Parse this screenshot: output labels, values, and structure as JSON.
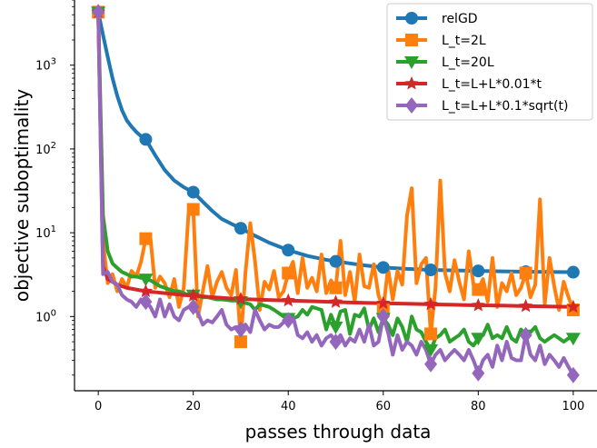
{
  "chart_data": {
    "type": "line",
    "title": "",
    "xlabel": "passes through data",
    "ylabel": "objective suboptimality",
    "xscale": "linear",
    "yscale": "log",
    "xlim": [
      -5,
      105
    ],
    "ylim": [
      0.13,
      6000
    ],
    "xticks": [
      0,
      20,
      40,
      60,
      80,
      100
    ],
    "yticks": [
      {
        "value": 1,
        "base": "10",
        "exp": "0"
      },
      {
        "value": 10,
        "base": "10",
        "exp": "1"
      },
      {
        "value": 100,
        "base": "10",
        "exp": "2"
      },
      {
        "value": 1000,
        "base": "10",
        "exp": "3"
      }
    ],
    "grid": false,
    "legend_position": "top-right",
    "series": [
      {
        "name": "relGD",
        "color": "#1f77b4",
        "marker": "circle",
        "x": [
          0,
          1,
          2,
          3,
          4,
          5,
          6,
          7,
          8,
          9,
          10,
          12,
          14,
          16,
          18,
          20,
          22,
          24,
          26,
          28,
          30,
          33,
          36,
          40,
          44,
          48,
          50,
          55,
          60,
          65,
          70,
          75,
          80,
          85,
          90,
          95,
          100
        ],
        "y": [
          4300,
          2300,
          1250,
          700,
          430,
          290,
          220,
          185,
          160,
          142,
          130,
          84,
          56,
          42,
          35,
          30.5,
          23.5,
          18.2,
          14.6,
          12.8,
          11.3,
          9.2,
          7.6,
          6.2,
          5.3,
          4.75,
          4.55,
          4.15,
          3.85,
          3.7,
          3.6,
          3.55,
          3.5,
          3.46,
          3.43,
          3.41,
          3.38
        ],
        "marker_x": [
          0,
          10,
          20,
          30,
          40,
          50,
          60,
          70,
          80,
          90,
          100
        ]
      },
      {
        "name": "L_t=2L",
        "color": "#ff7f0e",
        "marker": "square",
        "x": [
          0,
          1,
          2,
          3,
          4,
          5,
          6,
          7,
          8,
          9,
          10,
          11,
          12,
          13,
          14,
          15,
          16,
          17,
          18,
          19,
          20,
          21,
          22,
          23,
          24,
          25,
          26,
          27,
          28,
          29,
          30,
          31,
          32,
          33,
          34,
          35,
          36,
          37,
          38,
          39,
          40,
          41,
          42,
          43,
          44,
          45,
          46,
          47,
          48,
          49,
          50,
          51,
          52,
          53,
          54,
          55,
          56,
          57,
          58,
          59,
          60,
          61,
          62,
          63,
          64,
          65,
          66,
          67,
          68,
          69,
          70,
          71,
          72,
          73,
          74,
          75,
          76,
          77,
          78,
          79,
          80,
          81,
          82,
          83,
          84,
          85,
          86,
          87,
          88,
          89,
          90,
          91,
          92,
          93,
          94,
          95,
          96,
          97,
          98,
          99,
          100
        ],
        "y": [
          4300,
          8,
          2.5,
          3.2,
          2.0,
          2.8,
          2.2,
          3.5,
          3.0,
          4.5,
          8.5,
          8.5,
          2.2,
          3.0,
          2.5,
          1.7,
          2.8,
          1.3,
          2.2,
          17,
          19,
          1.0,
          2.0,
          4.0,
          1.7,
          2.6,
          3.4,
          2.2,
          1.8,
          3.6,
          0.5,
          3.4,
          13,
          4.6,
          1.2,
          2.6,
          2.1,
          3.5,
          1.7,
          2.0,
          3.3,
          4.5,
          1.9,
          5.0,
          2.2,
          2.9,
          2.0,
          5.5,
          1.9,
          2.7,
          2.2,
          8.0,
          1.8,
          3.4,
          1.5,
          5.5,
          2.3,
          2.2,
          4.2,
          1.8,
          1.2,
          3.8,
          1.6,
          3.5,
          2.4,
          16,
          34,
          2.5,
          4.2,
          5.0,
          0.62,
          2.2,
          42,
          3.3,
          2.0,
          4.7,
          2.6,
          1.6,
          6.0,
          2.4,
          2.1,
          2.8,
          1.5,
          5.0,
          1.3,
          2.5,
          2.0,
          3.3,
          1.8,
          2.2,
          3.3,
          1.7,
          2.4,
          25,
          1.4,
          5.0,
          2.3,
          1.2,
          2.6,
          1.7,
          1.2
        ],
        "marker_x": [
          0,
          10,
          20,
          30,
          40,
          50,
          60,
          70,
          80,
          90,
          100
        ]
      },
      {
        "name": "L_t=20L",
        "color": "#2ca02c",
        "marker": "triangle-down",
        "x": [
          0,
          1,
          2,
          3,
          4,
          5,
          6,
          7,
          8,
          9,
          10,
          11,
          12,
          13,
          14,
          15,
          16,
          17,
          18,
          19,
          20,
          21,
          22,
          23,
          24,
          25,
          26,
          27,
          28,
          29,
          30,
          31,
          32,
          33,
          34,
          35,
          36,
          37,
          38,
          39,
          40,
          41,
          42,
          43,
          44,
          45,
          46,
          47,
          48,
          49,
          50,
          51,
          52,
          53,
          54,
          55,
          56,
          57,
          58,
          59,
          60,
          61,
          62,
          63,
          64,
          65,
          66,
          67,
          68,
          69,
          70,
          71,
          72,
          73,
          74,
          75,
          76,
          77,
          78,
          79,
          80,
          81,
          82,
          83,
          84,
          85,
          86,
          87,
          88,
          89,
          90,
          91,
          92,
          93,
          94,
          95,
          96,
          97,
          98,
          99,
          100
        ],
        "y": [
          4300,
          16,
          6,
          4.3,
          3.8,
          3.4,
          3.2,
          3.0,
          3.0,
          2.9,
          2.8,
          2.7,
          2.5,
          2.3,
          2.2,
          2.1,
          2.0,
          2.0,
          1.9,
          1.8,
          1.8,
          1.75,
          1.7,
          1.7,
          1.65,
          1.6,
          1.6,
          1.58,
          1.55,
          1.55,
          1.5,
          1.45,
          1.4,
          1.2,
          1.4,
          1.35,
          1.3,
          1.2,
          1.1,
          1.0,
          0.95,
          0.95,
          1.0,
          1.2,
          1.05,
          1.3,
          1.25,
          1.2,
          0.7,
          1.05,
          0.75,
          1.15,
          1.2,
          0.62,
          1.05,
          1.0,
          1.25,
          0.7,
          0.95,
          0.65,
          0.95,
          0.8,
          0.6,
          0.95,
          0.75,
          0.5,
          1.0,
          0.7,
          0.65,
          0.5,
          0.4,
          0.55,
          0.6,
          0.7,
          0.5,
          0.55,
          0.6,
          0.7,
          0.5,
          0.45,
          0.55,
          0.6,
          0.8,
          0.55,
          0.6,
          0.55,
          0.75,
          0.55,
          0.5,
          0.7,
          0.6,
          0.65,
          0.75,
          0.55,
          0.5,
          0.55,
          0.6,
          0.55,
          0.5,
          0.55,
          0.55
        ],
        "marker_x": [
          0,
          10,
          20,
          30,
          40,
          50,
          60,
          70,
          80,
          90,
          100
        ]
      },
      {
        "name": "L_t=L+L*0.01*t",
        "color": "#d62728",
        "marker": "star",
        "x": [
          0,
          1,
          2,
          4,
          6,
          8,
          10,
          12,
          14,
          16,
          18,
          20,
          22,
          24,
          26,
          28,
          30,
          35,
          40,
          45,
          50,
          55,
          60,
          65,
          70,
          75,
          80,
          85,
          90,
          95,
          100
        ],
        "y": [
          4300,
          4.0,
          2.8,
          2.4,
          2.2,
          2.1,
          2.0,
          1.95,
          1.9,
          1.85,
          1.8,
          1.78,
          1.74,
          1.7,
          1.67,
          1.64,
          1.62,
          1.58,
          1.55,
          1.52,
          1.49,
          1.46,
          1.44,
          1.42,
          1.4,
          1.38,
          1.36,
          1.35,
          1.33,
          1.32,
          1.3
        ],
        "marker_x": [
          0,
          10,
          20,
          30,
          40,
          50,
          60,
          70,
          80,
          90,
          100
        ]
      },
      {
        "name": "L_t=L+L*0.1*sqrt(t)",
        "color": "#9467bd",
        "marker": "diamond",
        "x": [
          0,
          1,
          2,
          3,
          4,
          5,
          6,
          7,
          8,
          9,
          10,
          11,
          12,
          13,
          14,
          15,
          16,
          17,
          18,
          19,
          20,
          21,
          22,
          23,
          24,
          25,
          26,
          27,
          28,
          29,
          30,
          31,
          32,
          33,
          34,
          35,
          36,
          37,
          38,
          39,
          40,
          41,
          42,
          43,
          44,
          45,
          46,
          47,
          48,
          49,
          50,
          51,
          52,
          53,
          54,
          55,
          56,
          57,
          58,
          59,
          60,
          61,
          62,
          63,
          64,
          65,
          66,
          67,
          68,
          69,
          70,
          71,
          72,
          73,
          74,
          75,
          76,
          77,
          78,
          79,
          80,
          81,
          82,
          83,
          84,
          85,
          86,
          87,
          88,
          89,
          90,
          91,
          92,
          93,
          94,
          95,
          96,
          97,
          98,
          99,
          100
        ],
        "y": [
          4300,
          3.2,
          3.4,
          2.6,
          2.4,
          1.8,
          1.6,
          1.5,
          1.3,
          1.6,
          1.5,
          1.3,
          1.0,
          1.6,
          1.0,
          1.4,
          1.0,
          0.9,
          1.2,
          1.3,
          1.3,
          1.1,
          0.8,
          0.9,
          0.85,
          1.0,
          1.2,
          0.8,
          0.7,
          0.75,
          0.7,
          0.8,
          0.65,
          1.2,
          0.9,
          0.7,
          0.8,
          0.75,
          0.75,
          0.85,
          0.9,
          1.0,
          0.6,
          0.55,
          0.65,
          0.5,
          0.6,
          0.45,
          0.55,
          0.6,
          0.5,
          0.6,
          0.45,
          0.55,
          0.5,
          0.7,
          0.5,
          0.8,
          0.45,
          0.5,
          1.0,
          0.65,
          0.35,
          0.6,
          0.4,
          0.5,
          0.45,
          0.35,
          0.5,
          0.4,
          0.27,
          0.35,
          0.4,
          0.3,
          0.35,
          0.4,
          0.35,
          0.3,
          0.4,
          0.3,
          0.21,
          0.3,
          0.35,
          0.25,
          0.45,
          0.3,
          0.5,
          0.32,
          0.3,
          0.3,
          0.6,
          0.35,
          0.3,
          0.45,
          0.27,
          0.35,
          0.3,
          0.25,
          0.32,
          0.25,
          0.2
        ],
        "marker_x": [
          0,
          10,
          20,
          30,
          40,
          50,
          60,
          70,
          80,
          90,
          100
        ]
      }
    ]
  }
}
